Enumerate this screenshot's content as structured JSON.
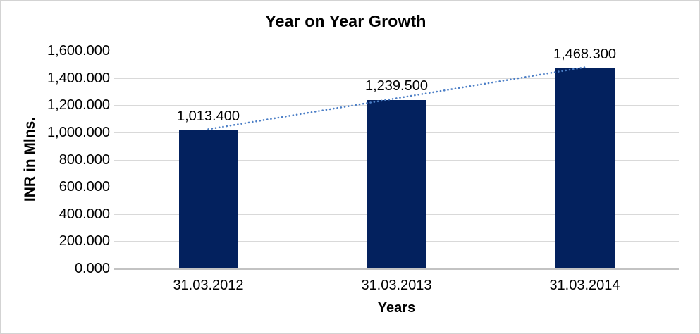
{
  "chart_data": {
    "type": "bar",
    "title": "Year on Year Growth",
    "xlabel": "Years",
    "ylabel": "INR in Mlns.",
    "categories": [
      "31.03.2012",
      "31.03.2013",
      "31.03.2014"
    ],
    "values": [
      1013.4,
      1239.5,
      1468.3
    ],
    "value_labels": [
      "1,013.400",
      "1,239.500",
      "1,468.300"
    ],
    "ylim": [
      0,
      1600
    ],
    "ytick_step": 200,
    "ytick_labels": [
      "1,600.000",
      "1,400.000",
      "1,200.000",
      "1,000.000",
      "800.000",
      "600.000",
      "400.000",
      "200.000",
      "0.000"
    ],
    "grid": true,
    "legend_position": "none",
    "trendline": {
      "type": "linear",
      "style": "dotted"
    },
    "colors": {
      "bar": "#03215e",
      "trendline": "#4b7ec6",
      "gridline": "#d9d9d9",
      "axis_line": "#c3c3c3",
      "text": "#000000"
    }
  }
}
